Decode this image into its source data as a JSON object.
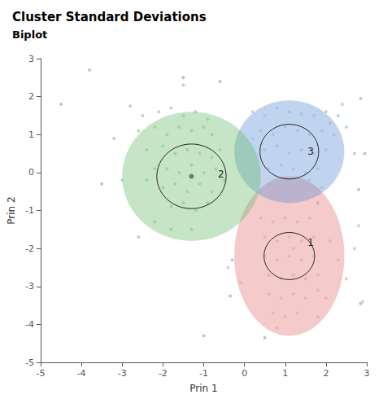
{
  "chart_data": {
    "type": "scatter",
    "title": "Cluster Standard Deviations",
    "subtitle": "Biplot",
    "xlabel": "Prin 1",
    "ylabel": "Prin 2",
    "xlim": [
      -5,
      3
    ],
    "ylim": [
      -5,
      3
    ],
    "xticks": [
      -5,
      -4,
      -3,
      -2,
      -1,
      0,
      1,
      2,
      3
    ],
    "yticks": [
      -5,
      -4,
      -3,
      -2,
      -1,
      0,
      1,
      2,
      3
    ],
    "grid": false,
    "series": [
      {
        "color": "#88cc88",
        "values": [
          [
            -2.8,
            1.75
          ],
          [
            -3.2,
            0.9
          ],
          [
            -2.5,
            1.5
          ],
          [
            -2.1,
            1.6
          ],
          [
            -1.8,
            1.7
          ],
          [
            -1.5,
            1.5
          ],
          [
            -1.2,
            1.6
          ],
          [
            -0.9,
            1.4
          ],
          [
            -2.6,
            1.1
          ],
          [
            -2.2,
            1.2
          ],
          [
            -1.9,
            1.0
          ],
          [
            -1.6,
            1.2
          ],
          [
            -1.3,
            1.1
          ],
          [
            -1.0,
            1.2
          ],
          [
            -0.8,
            1.0
          ],
          [
            -2.4,
            0.6
          ],
          [
            -2.0,
            0.7
          ],
          [
            -1.7,
            0.5
          ],
          [
            -1.4,
            0.6
          ],
          [
            -1.1,
            0.5
          ],
          [
            -0.8,
            0.4
          ],
          [
            -0.6,
            0.6
          ],
          [
            -2.2,
            0.1
          ],
          [
            -1.9,
            0.1
          ],
          [
            -1.6,
            0.0
          ],
          [
            -1.3,
            0.2
          ],
          [
            -1.0,
            0.0
          ],
          [
            -0.7,
            0.1
          ],
          [
            -2.0,
            -0.4
          ],
          [
            -1.7,
            -0.3
          ],
          [
            -1.4,
            -0.5
          ],
          [
            -1.1,
            -0.3
          ],
          [
            -0.8,
            -0.5
          ],
          [
            -1.8,
            -0.9
          ],
          [
            -1.5,
            -0.8
          ],
          [
            -1.2,
            -1.0
          ],
          [
            -0.9,
            -0.8
          ],
          [
            -2.2,
            -1.3
          ],
          [
            -1.8,
            -1.5
          ],
          [
            -2.6,
            -1.7
          ],
          [
            -1.5,
            2.3
          ],
          [
            -3.0,
            -0.2
          ],
          [
            -0.5,
            -0.2
          ],
          [
            -2.4,
            -0.2
          ],
          [
            -1.3,
            -1.5
          ]
        ]
      },
      {
        "color": "#99bbdd",
        "values": [
          [
            0.2,
            1.6
          ],
          [
            0.5,
            1.5
          ],
          [
            0.8,
            1.7
          ],
          [
            1.1,
            1.6
          ],
          [
            1.4,
            1.55
          ],
          [
            1.7,
            1.5
          ],
          [
            2.0,
            1.6
          ],
          [
            2.3,
            1.5
          ],
          [
            0.4,
            1.1
          ],
          [
            0.7,
            1.0
          ],
          [
            1.0,
            1.2
          ],
          [
            1.3,
            1.1
          ],
          [
            1.6,
            1.0
          ],
          [
            1.9,
            1.1
          ],
          [
            2.2,
            1.0
          ],
          [
            0.5,
            0.6
          ],
          [
            0.8,
            0.7
          ],
          [
            1.1,
            0.5
          ],
          [
            1.4,
            0.6
          ],
          [
            1.7,
            0.5
          ],
          [
            2.0,
            0.6
          ],
          [
            0.6,
            0.1
          ],
          [
            0.9,
            0.2
          ],
          [
            1.2,
            0.1
          ],
          [
            1.5,
            0.0
          ],
          [
            1.8,
            0.1
          ],
          [
            0.7,
            -0.3
          ],
          [
            1.0,
            -0.4
          ],
          [
            1.3,
            -0.3
          ],
          [
            1.6,
            -0.2
          ],
          [
            2.5,
            1.2
          ],
          [
            2.7,
            0.5
          ],
          [
            2.4,
            1.8
          ],
          [
            0.2,
            0.9
          ],
          [
            1.9,
            -0.4
          ],
          [
            0.4,
            -0.5
          ],
          [
            2.1,
            1.3
          ]
        ]
      },
      {
        "color": "#ddaaaa",
        "values": [
          [
            0.4,
            -1.2
          ],
          [
            0.7,
            -1.3
          ],
          [
            1.0,
            -1.2
          ],
          [
            1.3,
            -1.3
          ],
          [
            1.6,
            -1.2
          ],
          [
            0.5,
            -1.7
          ],
          [
            0.8,
            -1.8
          ],
          [
            1.1,
            -1.7
          ],
          [
            1.4,
            -1.8
          ],
          [
            1.7,
            -1.7
          ],
          [
            0.5,
            -2.2
          ],
          [
            0.8,
            -2.3
          ],
          [
            1.1,
            -2.2
          ],
          [
            1.4,
            -2.3
          ],
          [
            1.7,
            -2.2
          ],
          [
            0.6,
            -2.7
          ],
          [
            0.9,
            -2.8
          ],
          [
            1.2,
            -2.7
          ],
          [
            1.5,
            -2.8
          ],
          [
            1.8,
            -2.7
          ],
          [
            0.6,
            -3.2
          ],
          [
            0.9,
            -3.3
          ],
          [
            1.2,
            -3.2
          ],
          [
            1.5,
            -3.3
          ],
          [
            1.8,
            -3.1
          ],
          [
            0.7,
            -3.7
          ],
          [
            1.0,
            -3.8
          ],
          [
            1.3,
            -3.7
          ],
          [
            2.1,
            -1.8
          ],
          [
            2.3,
            -2.3
          ],
          [
            2.5,
            -2.8
          ],
          [
            2.0,
            -3.3
          ],
          [
            1.8,
            -3.8
          ],
          [
            0.8,
            -4.1
          ],
          [
            2.8,
            -1.4
          ],
          [
            2.9,
            -3.4
          ],
          [
            -0.1,
            -2.9
          ],
          [
            -0.4,
            -2.5
          ],
          [
            1.2,
            -2.0
          ],
          [
            2.7,
            -2.0
          ]
        ]
      },
      {
        "color": "#aaaaaa",
        "values": [
          [
            -4.5,
            1.8
          ],
          [
            -3.8,
            2.7
          ],
          [
            -0.6,
            2.4
          ],
          [
            2.85,
            1.95
          ],
          [
            2.95,
            0.5
          ],
          [
            -0.35,
            -3.25
          ],
          [
            -1.0,
            -4.3
          ],
          [
            2.85,
            -3.45
          ],
          [
            0.5,
            -4.35
          ],
          [
            -1.5,
            2.5
          ],
          [
            2.8,
            -0.45
          ],
          [
            -3.5,
            -0.3
          ],
          [
            -0.3,
            -2.3
          ],
          [
            1.8,
            -0.8
          ]
        ]
      }
    ],
    "clusters": [
      {
        "label": "1",
        "center": [
          1.1,
          -2.2
        ],
        "outer_rx": 1.35,
        "outer_ry": 2.1,
        "inner_rx": 0.62,
        "inner_ry": 0.62,
        "color": "#e57373",
        "label_pos": [
          1.55,
          -1.85
        ]
      },
      {
        "label": "3",
        "center": [
          1.1,
          0.55
        ],
        "outer_rx": 1.35,
        "outer_ry": 1.35,
        "inner_rx": 0.72,
        "inner_ry": 0.72,
        "color": "#5c8fd6",
        "label_pos": [
          1.55,
          0.55
        ]
      },
      {
        "label": "2",
        "center": [
          -1.3,
          -0.1
        ],
        "outer_rx": 1.7,
        "outer_ry": 1.7,
        "inner_rx": 0.85,
        "inner_ry": 0.85,
        "color": "#66bb6a",
        "label_pos": [
          -0.65,
          -0.05
        ],
        "center_color": "#2e7d32"
      }
    ]
  }
}
